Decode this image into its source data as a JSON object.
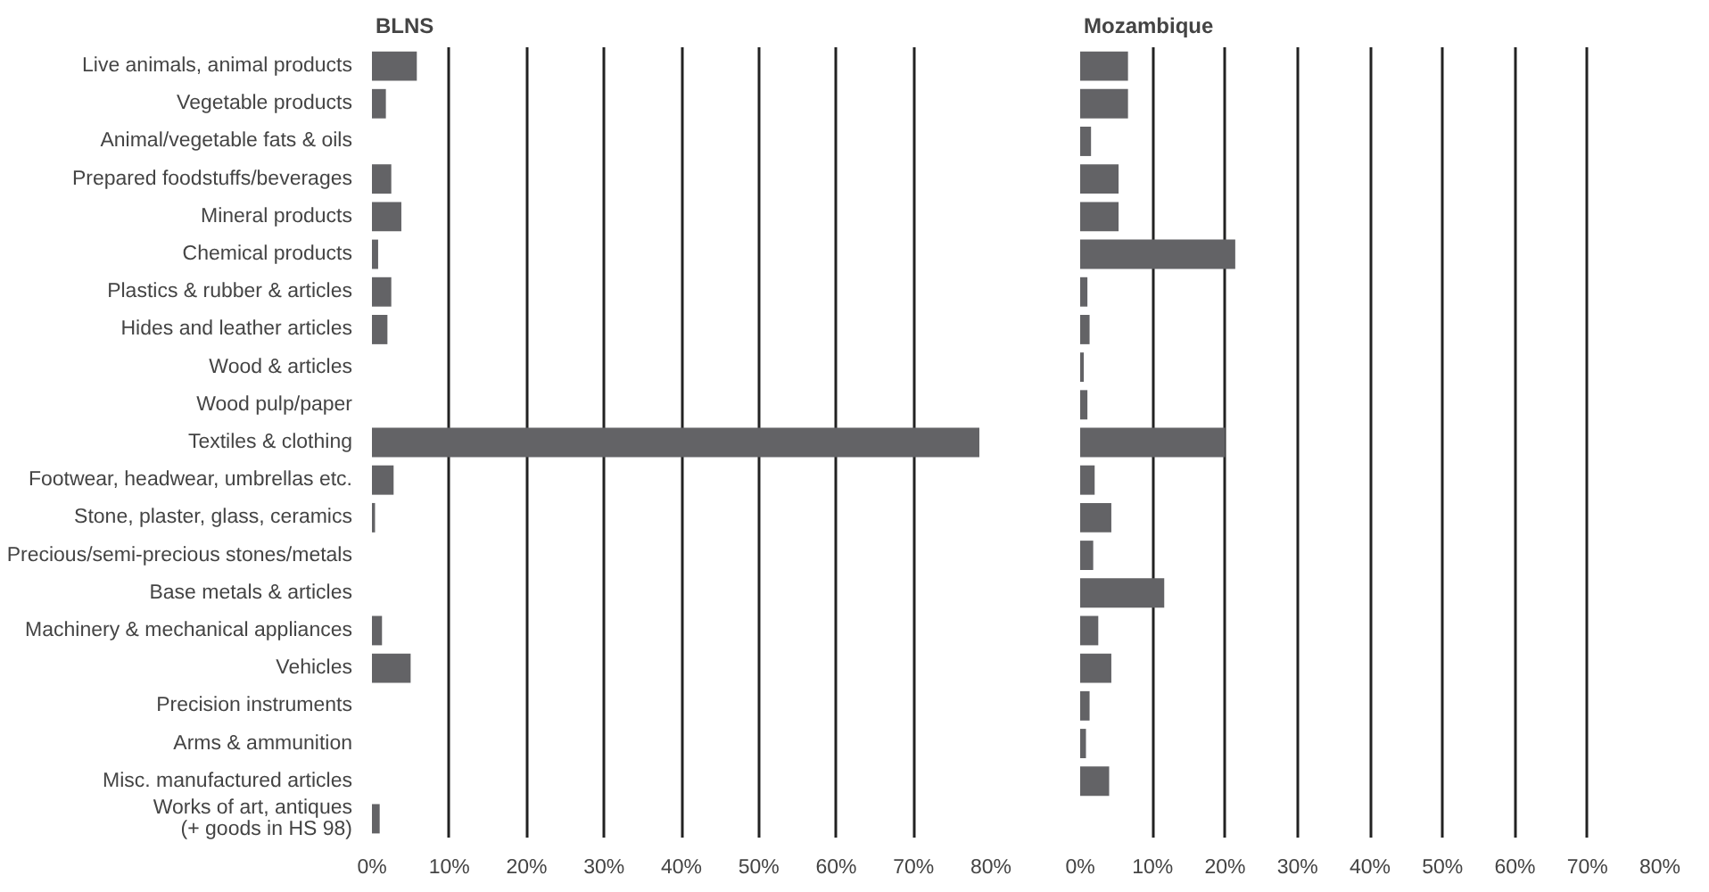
{
  "chart_data": [
    {
      "type": "bar",
      "orientation": "horizontal",
      "title": "BLNS",
      "categories": [
        "Live animals, animal products",
        "Vegetable products",
        "Animal/vegetable fats & oils",
        "Prepared foodstuffs/beverages",
        "Mineral products",
        "Chemical products",
        "Plastics & rubber & articles",
        "Hides and leather articles",
        "Wood & articles",
        "Wood pulp/paper",
        "Textiles & clothing",
        "Footwear, headwear, umbrellas etc.",
        "Stone, plaster, glass, ceramics",
        "Precious/semi-precious stones/metals",
        "Base metals & articles",
        "Machinery & mechanical appliances",
        "Vehicles",
        "Precision instruments",
        "Arms & ammunition",
        "Misc. manufactured articles",
        "Works of art, antiques\n(+ goods in HS 98)"
      ],
      "values": [
        5.8,
        1.8,
        0,
        2.5,
        3.8,
        0.8,
        2.5,
        2.0,
        0,
        0,
        78.5,
        2.8,
        0.4,
        0,
        0,
        1.3,
        5.0,
        0,
        0,
        0,
        1.0
      ],
      "color": "#636366",
      "xlim": [
        0,
        80
      ],
      "grid": "x",
      "xticks": [
        {
          "value": 0,
          "label": "0%"
        },
        {
          "value": 10,
          "label": "10%"
        },
        {
          "value": 20,
          "label": "20%"
        },
        {
          "value": 30,
          "label": "30%"
        },
        {
          "value": 40,
          "label": "40%"
        },
        {
          "value": 50,
          "label": "50%"
        },
        {
          "value": 60,
          "label": "60%"
        },
        {
          "value": 70,
          "label": "70%"
        },
        {
          "value": 80,
          "label": "80%"
        }
      ]
    },
    {
      "type": "bar",
      "orientation": "horizontal",
      "title": "Mozambique",
      "categories": [
        null,
        null,
        null,
        null,
        null,
        null,
        null,
        null,
        null,
        null,
        null,
        null,
        null,
        null,
        null,
        null,
        null,
        null,
        null,
        null,
        null
      ],
      "values": [
        6.6,
        6.6,
        1.5,
        5.3,
        5.3,
        21.4,
        1.0,
        1.3,
        0.5,
        1.0,
        20.0,
        2.0,
        4.3,
        1.8,
        11.6,
        2.5,
        4.3,
        1.3,
        0.8,
        4.0,
        0
      ],
      "color": "#636366",
      "xlim": [
        0,
        80
      ],
      "grid": "x",
      "tick_labels": "x",
      "xticks": [
        {
          "value": 0,
          "label": "0%"
        },
        {
          "value": 10,
          "label": "10%"
        },
        {
          "value": 20,
          "label": "20%"
        },
        {
          "value": 30,
          "label": "30%"
        },
        {
          "value": 40,
          "label": "40%"
        },
        {
          "value": 50,
          "label": "50%"
        },
        {
          "value": 60,
          "label": "60%"
        },
        {
          "value": 70,
          "label": "70%"
        },
        {
          "value": 80,
          "label": "80%"
        }
      ]
    }
  ]
}
